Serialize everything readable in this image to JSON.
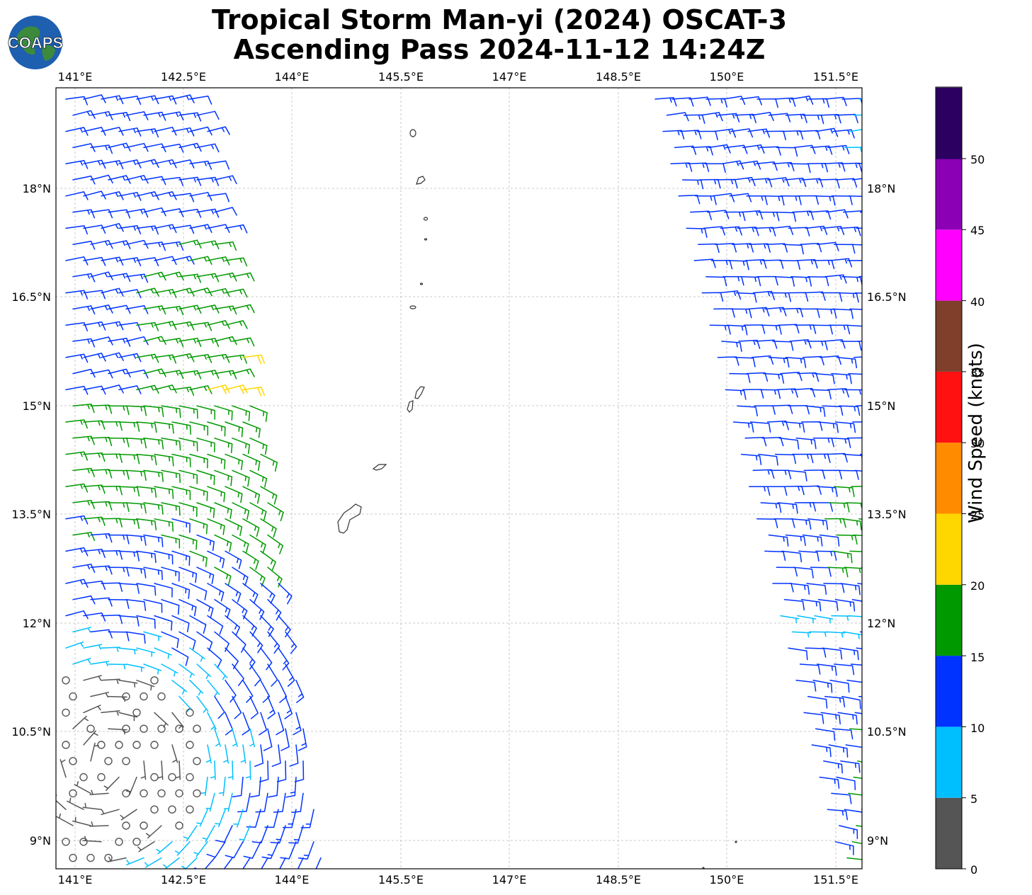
{
  "title": {
    "line1": "Tropical Storm Man-yi (2024) OSCAT-3",
    "line2": "Ascending Pass 2024-11-12 14:24Z"
  },
  "logo": {
    "text": "COAPS",
    "icon": "globe-icon"
  },
  "map": {
    "lon_range": [
      140.75,
      151.85
    ],
    "lat_range": [
      8.4,
      19.2
    ],
    "lon_ticks": [
      "141°E",
      "142.5°E",
      "144°E",
      "145.5°E",
      "147°E",
      "148.5°E",
      "150°E",
      "151.5°E"
    ],
    "lat_ticks": [
      "18°N",
      "16.5°N",
      "15°N",
      "13.5°N",
      "12°N",
      "10.5°N",
      "9°N"
    ],
    "grid": "dashed",
    "swaths": [
      "west",
      "east"
    ]
  },
  "colorbar": {
    "label": "Wind Speed (knots)",
    "ticks": [
      "0",
      "5",
      "10",
      "15",
      "20",
      "25",
      "30",
      "35",
      "40",
      "45",
      "50"
    ],
    "colors": [
      "#555555",
      "#00bfff",
      "#0033ff",
      "#009900",
      "#ffd700",
      "#ff8c00",
      "#ff1111",
      "#7f3f2a",
      "#ff00ff",
      "#8b00b5",
      "#2b0060"
    ]
  }
}
